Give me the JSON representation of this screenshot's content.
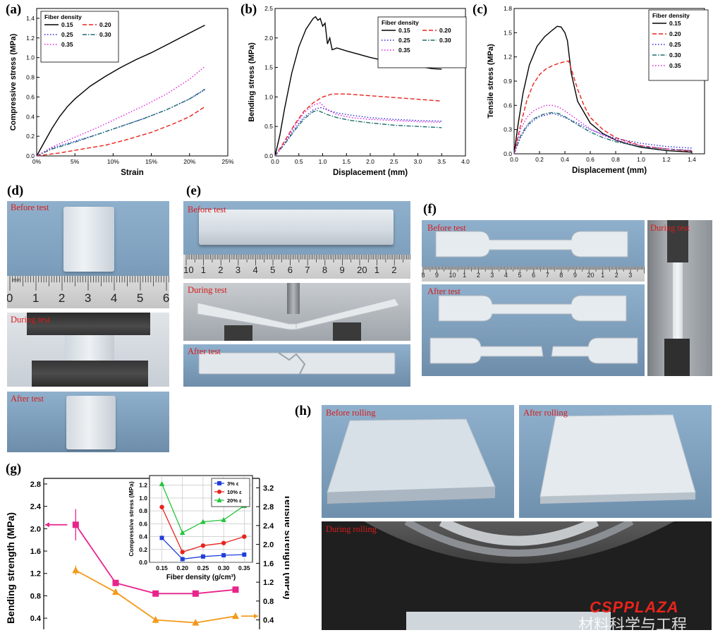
{
  "colors": {
    "s015": "#000000",
    "s020": "#e8241c",
    "s025": "#2c2cd8",
    "s030": "#1f6e6e",
    "s035": "#e020e0",
    "label_red": "#d81b1b",
    "g_bending": "#e8248c",
    "g_tensile": "#f39a1c",
    "i3": "#1f3fd8",
    "i10": "#e8241c",
    "i20": "#22c43a"
  },
  "panel_labels": {
    "a": "(a)",
    "b": "(b)",
    "c": "(c)",
    "d": "(d)",
    "e": "(e)",
    "f": "(f)",
    "g": "(g)",
    "h": "(h)"
  },
  "legend_title": "Fiber density",
  "photos": {
    "d_before": "Before test",
    "d_during": "During test",
    "d_after": "After test",
    "e_before": "Before test",
    "e_during": "During test",
    "e_after": "After test",
    "f_before": "Before test",
    "f_after": "After test",
    "f_during": "During test",
    "h_before": "Before rolling",
    "h_after": "After rolling",
    "h_during": "During rolling"
  },
  "rulers": {
    "d_numbers": [
      "0",
      "1",
      "2",
      "3",
      "4",
      "5",
      "6"
    ],
    "d_unit": "mm",
    "e_numbers": [
      "10",
      "1",
      "2",
      "3",
      "4",
      "5",
      "6",
      "7",
      "8",
      "9",
      "20",
      "1",
      "2"
    ],
    "f_numbers": [
      "8",
      "9",
      "10",
      "1",
      "2",
      "3",
      "4",
      "5",
      "6",
      "7",
      "8",
      "9",
      "20",
      "1",
      "2",
      "3"
    ]
  },
  "watermark": {
    "logo": "CSPPLAZA",
    "text": "材料科学与工程"
  },
  "chart_data": [
    {
      "id": "a",
      "type": "line",
      "xlabel": "Strain",
      "ylabel": "Compressive stress (MPa)",
      "xlim": [
        0,
        0.25
      ],
      "ylim": [
        0,
        1.5
      ],
      "xticks": [
        "0%",
        "5%",
        "10%",
        "15%",
        "20%",
        "25%"
      ],
      "xtick_values": [
        0,
        0.05,
        0.1,
        0.15,
        0.2,
        0.25
      ],
      "yticks": [
        "0.0",
        "0.2",
        "0.4",
        "0.6",
        "0.8",
        "1.0",
        "1.2",
        "1.4"
      ],
      "ytick_values": [
        0,
        0.2,
        0.4,
        0.6,
        0.8,
        1.0,
        1.2,
        1.4
      ],
      "legend_position": "top-left",
      "series": [
        {
          "name": "0.15",
          "color": "#000000",
          "dash": "solid",
          "x": [
            0,
            0.01,
            0.02,
            0.03,
            0.04,
            0.05,
            0.07,
            0.09,
            0.11,
            0.13,
            0.15,
            0.17,
            0.19,
            0.21,
            0.22
          ],
          "y": [
            0,
            0.14,
            0.28,
            0.4,
            0.5,
            0.58,
            0.71,
            0.81,
            0.9,
            0.98,
            1.05,
            1.13,
            1.21,
            1.29,
            1.33
          ]
        },
        {
          "name": "0.20",
          "color": "#e8241c",
          "dash": "dash",
          "x": [
            0,
            0.03,
            0.06,
            0.09,
            0.12,
            0.15,
            0.18,
            0.2,
            0.22
          ],
          "y": [
            0,
            0.03,
            0.07,
            0.11,
            0.17,
            0.24,
            0.33,
            0.4,
            0.5
          ]
        },
        {
          "name": "0.25",
          "color": "#2c2cd8",
          "dash": "dot",
          "x": [
            0,
            0.02,
            0.05,
            0.08,
            0.11,
            0.14,
            0.17,
            0.2,
            0.22
          ],
          "y": [
            0,
            0.08,
            0.15,
            0.22,
            0.3,
            0.38,
            0.47,
            0.58,
            0.67
          ]
        },
        {
          "name": "0.30",
          "color": "#1f6e6e",
          "dash": "dashdot",
          "x": [
            0,
            0.02,
            0.05,
            0.08,
            0.11,
            0.14,
            0.17,
            0.2,
            0.22
          ],
          "y": [
            0,
            0.07,
            0.14,
            0.22,
            0.3,
            0.38,
            0.47,
            0.58,
            0.68
          ]
        },
        {
          "name": "0.35",
          "color": "#e020e0",
          "dash": "dot",
          "x": [
            0,
            0.02,
            0.05,
            0.08,
            0.11,
            0.14,
            0.17,
            0.2,
            0.22
          ],
          "y": [
            0,
            0.09,
            0.19,
            0.29,
            0.4,
            0.51,
            0.63,
            0.78,
            0.91
          ]
        }
      ]
    },
    {
      "id": "b",
      "type": "line",
      "xlabel": "Displacement (mm)",
      "ylabel": "Bending stress (MPa)",
      "xlim": [
        0,
        4.0
      ],
      "ylim": [
        0,
        2.5
      ],
      "xticks": [
        "0.0",
        "0.5",
        "1.0",
        "1.5",
        "2.0",
        "2.5",
        "3.0",
        "3.5",
        "4.0"
      ],
      "xtick_values": [
        0,
        0.5,
        1.0,
        1.5,
        2.0,
        2.5,
        3.0,
        3.5,
        4.0
      ],
      "yticks": [
        "0.0",
        "0.5",
        "1.0",
        "1.5",
        "2.0",
        "2.5"
      ],
      "ytick_values": [
        0,
        0.5,
        1.0,
        1.5,
        2.0,
        2.5
      ],
      "legend_position": "top-right",
      "series": [
        {
          "name": "0.15",
          "color": "#000000",
          "dash": "solid",
          "x": [
            0,
            0.1,
            0.2,
            0.35,
            0.5,
            0.65,
            0.8,
            0.85,
            0.9,
            0.95,
            1.0,
            1.05,
            1.1,
            1.15,
            1.2,
            1.3,
            1.5,
            2.0,
            2.5,
            3.0,
            3.3,
            3.5
          ],
          "y": [
            0,
            0.35,
            0.8,
            1.4,
            1.85,
            2.15,
            2.33,
            2.36,
            2.3,
            2.33,
            2.2,
            2.25,
            1.9,
            2.0,
            1.8,
            1.83,
            1.78,
            1.67,
            1.58,
            1.52,
            1.48,
            1.47
          ]
        },
        {
          "name": "0.20",
          "color": "#e8241c",
          "dash": "dash",
          "x": [
            0,
            0.2,
            0.4,
            0.6,
            0.8,
            1.0,
            1.2,
            1.5,
            2.0,
            2.5,
            3.0,
            3.5
          ],
          "y": [
            0,
            0.25,
            0.52,
            0.75,
            0.9,
            1.0,
            1.05,
            1.05,
            1.02,
            0.99,
            0.96,
            0.93
          ]
        },
        {
          "name": "0.25",
          "color": "#2c2cd8",
          "dash": "dot",
          "x": [
            0,
            0.2,
            0.4,
            0.6,
            0.8,
            0.95,
            1.1,
            1.3,
            1.6,
            2.0,
            2.5,
            3.0,
            3.5
          ],
          "y": [
            0,
            0.2,
            0.45,
            0.65,
            0.78,
            0.82,
            0.78,
            0.73,
            0.69,
            0.65,
            0.62,
            0.6,
            0.59
          ]
        },
        {
          "name": "0.30",
          "color": "#1f6e6e",
          "dash": "dashdot",
          "x": [
            0,
            0.2,
            0.4,
            0.6,
            0.8,
            0.9,
            1.1,
            1.3,
            1.6,
            2.0,
            2.5,
            3.0,
            3.5
          ],
          "y": [
            0,
            0.2,
            0.42,
            0.62,
            0.75,
            0.77,
            0.7,
            0.65,
            0.6,
            0.56,
            0.52,
            0.5,
            0.48
          ]
        },
        {
          "name": "0.35",
          "color": "#e020e0",
          "dash": "dot",
          "x": [
            0,
            0.2,
            0.4,
            0.6,
            0.8,
            0.95,
            1.1,
            1.3,
            1.6,
            2.0,
            2.5,
            3.0,
            3.5
          ],
          "y": [
            0,
            0.22,
            0.5,
            0.72,
            0.86,
            0.9,
            0.78,
            0.7,
            0.65,
            0.62,
            0.6,
            0.58,
            0.57
          ]
        }
      ]
    },
    {
      "id": "c",
      "type": "line",
      "xlabel": "Displacement (mm)",
      "ylabel": "Tensile stress (MPa)",
      "xlim": [
        0,
        1.5
      ],
      "ylim": [
        0,
        1.8
      ],
      "xticks": [
        "0.0",
        "0.2",
        "0.4",
        "0.6",
        "0.8",
        "1.0",
        "1.2",
        "1.4"
      ],
      "xtick_values": [
        0,
        0.2,
        0.4,
        0.6,
        0.8,
        1.0,
        1.2,
        1.4
      ],
      "yticks": [
        "0.0",
        "0.3",
        "0.6",
        "0.9",
        "1.2",
        "1.5",
        "1.8"
      ],
      "ytick_values": [
        0,
        0.3,
        0.6,
        0.9,
        1.2,
        1.5,
        1.8
      ],
      "legend_position": "top-right",
      "series": [
        {
          "name": "0.15",
          "color": "#000000",
          "dash": "solid",
          "x": [
            0,
            0.03,
            0.07,
            0.12,
            0.18,
            0.24,
            0.3,
            0.34,
            0.37,
            0.4,
            0.42,
            0.45,
            0.5,
            0.6,
            0.7,
            0.8,
            0.9,
            1.0,
            1.2,
            1.4
          ],
          "y": [
            0,
            0.35,
            0.75,
            1.1,
            1.33,
            1.45,
            1.53,
            1.58,
            1.57,
            1.5,
            1.4,
            1.0,
            0.65,
            0.38,
            0.25,
            0.17,
            0.12,
            0.08,
            0.04,
            0.02
          ]
        },
        {
          "name": "0.20",
          "color": "#e8241c",
          "dash": "dash",
          "x": [
            0,
            0.05,
            0.1,
            0.15,
            0.2,
            0.25,
            0.3,
            0.35,
            0.4,
            0.43,
            0.45,
            0.5,
            0.55,
            0.6,
            0.7,
            0.8,
            1.0,
            1.2,
            1.4
          ],
          "y": [
            0,
            0.35,
            0.66,
            0.86,
            0.98,
            1.05,
            1.09,
            1.12,
            1.14,
            1.15,
            1.05,
            0.8,
            0.6,
            0.45,
            0.3,
            0.2,
            0.1,
            0.06,
            0.03
          ]
        },
        {
          "name": "0.25",
          "color": "#2c2cd8",
          "dash": "dot",
          "x": [
            0,
            0.05,
            0.1,
            0.15,
            0.2,
            0.25,
            0.3,
            0.35,
            0.4,
            0.5,
            0.6,
            0.7,
            0.8,
            1.0,
            1.2,
            1.4
          ],
          "y": [
            0,
            0.2,
            0.33,
            0.41,
            0.46,
            0.48,
            0.5,
            0.48,
            0.45,
            0.38,
            0.3,
            0.24,
            0.19,
            0.13,
            0.09,
            0.07
          ]
        },
        {
          "name": "0.30",
          "color": "#1f6e6e",
          "dash": "dashdot",
          "x": [
            0,
            0.05,
            0.1,
            0.15,
            0.2,
            0.25,
            0.3,
            0.35,
            0.4,
            0.5,
            0.6,
            0.7,
            0.8,
            1.0,
            1.2,
            1.4
          ],
          "y": [
            0,
            0.22,
            0.35,
            0.43,
            0.47,
            0.5,
            0.51,
            0.5,
            0.46,
            0.36,
            0.27,
            0.2,
            0.15,
            0.09,
            0.06,
            0.04
          ]
        },
        {
          "name": "0.35",
          "color": "#e020e0",
          "dash": "dot",
          "x": [
            0,
            0.05,
            0.1,
            0.15,
            0.2,
            0.25,
            0.3,
            0.35,
            0.4,
            0.5,
            0.6,
            0.7,
            0.8,
            1.0,
            1.2,
            1.4
          ],
          "y": [
            0,
            0.3,
            0.45,
            0.53,
            0.57,
            0.6,
            0.6,
            0.58,
            0.53,
            0.42,
            0.31,
            0.23,
            0.17,
            0.1,
            0.06,
            0.04
          ]
        }
      ]
    },
    {
      "id": "g",
      "type": "line",
      "ylabel": "Bending strength (MPa)",
      "y2label": "Tensile strength (MPa)",
      "ylim": [
        0.2,
        2.9
      ],
      "y2lim": [
        0.2,
        3.4
      ],
      "yticks": [
        "0.4",
        "0.8",
        "1.2",
        "1.6",
        "2.0",
        "2.4",
        "2.8"
      ],
      "ytick_values": [
        0.4,
        0.8,
        1.2,
        1.6,
        2.0,
        2.4,
        2.8
      ],
      "y2ticks": [
        "0.4",
        "0.8",
        "1.2",
        "1.6",
        "2.0",
        "2.4",
        "2.8",
        "3.2"
      ],
      "y2tick_values": [
        0.4,
        0.8,
        1.2,
        1.6,
        2.0,
        2.4,
        2.8,
        3.2
      ],
      "x": [
        0.15,
        0.2,
        0.25,
        0.3,
        0.35
      ],
      "xlim": [
        0.11,
        0.38
      ],
      "series": [
        {
          "name": "Bending",
          "axis": "left",
          "color": "#e8248c",
          "marker": "square",
          "values": [
            2.07,
            1.03,
            0.84,
            0.84,
            0.91
          ],
          "errors": [
            0.28,
            0.04,
            0.05,
            0.03,
            0.05
          ]
        },
        {
          "name": "Tensile",
          "axis": "right",
          "color": "#f39a1c",
          "marker": "triangle",
          "values": [
            1.45,
            0.99,
            0.4,
            0.34,
            0.48
          ],
          "errors": [
            0.1,
            0.05,
            0.07,
            0.03,
            0.05
          ]
        }
      ]
    },
    {
      "id": "g-inset",
      "type": "line",
      "xlabel": "Fiber density (g/cm³)",
      "ylabel": "Compressive stress (MPa)",
      "xlim": [
        0.12,
        0.37
      ],
      "ylim": [
        0,
        1.35
      ],
      "xticks": [
        "0.15",
        "0.20",
        "0.25",
        "0.30",
        "0.35"
      ],
      "xtick_values": [
        0.15,
        0.2,
        0.25,
        0.3,
        0.35
      ],
      "yticks": [
        "0.0",
        "0.2",
        "0.4",
        "0.6",
        "0.8",
        "1.0",
        "1.2"
      ],
      "ytick_values": [
        0,
        0.2,
        0.4,
        0.6,
        0.8,
        1.0,
        1.2
      ],
      "legend_position": "top-right",
      "grid": true,
      "x": [
        0.15,
        0.2,
        0.25,
        0.3,
        0.35
      ],
      "series": [
        {
          "name": "3% ε",
          "color": "#1f3fd8",
          "marker": "square",
          "values": [
            0.38,
            0.05,
            0.09,
            0.11,
            0.12
          ]
        },
        {
          "name": "10% ε",
          "color": "#e8241c",
          "marker": "circle",
          "values": [
            0.86,
            0.16,
            0.26,
            0.3,
            0.4
          ]
        },
        {
          "name": "20% ε",
          "color": "#22c43a",
          "marker": "triangle",
          "values": [
            1.22,
            0.46,
            0.63,
            0.66,
            0.88
          ]
        }
      ]
    }
  ]
}
